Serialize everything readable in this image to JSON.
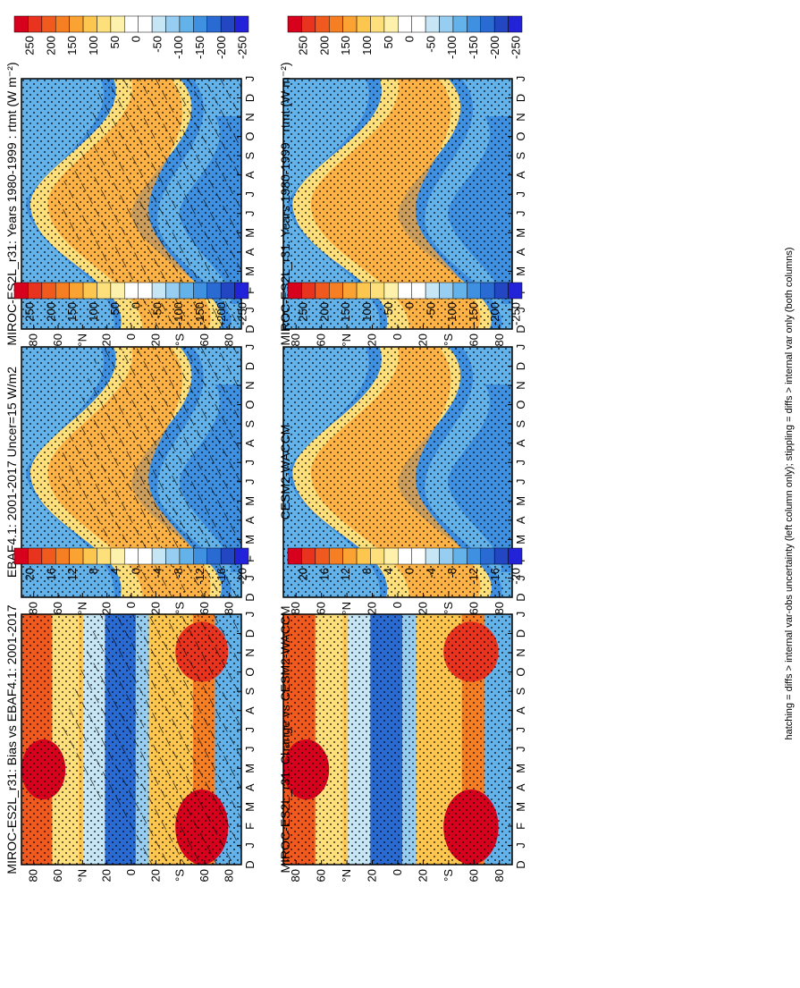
{
  "chart_data": [
    {
      "id": "a",
      "type": "heatmap",
      "title": "MIROC-ES2L_r31: Years 1980-1999 : rtmt (W m⁻²)",
      "x_tick_labels": [
        "D",
        "J",
        "F",
        "M",
        "A",
        "M",
        "J",
        "J",
        "A",
        "S",
        "O",
        "N",
        "D",
        "J"
      ],
      "y_tick_labels": [
        "80",
        "60",
        "°N",
        "20",
        "0",
        "20",
        "°S",
        "60",
        "80"
      ],
      "colorbar_labels": [
        "250",
        "200",
        "150",
        "100",
        "50",
        "0",
        "-50",
        "-100",
        "-150",
        "-200",
        "-250"
      ],
      "hatching": true,
      "stippling": true
    },
    {
      "id": "b",
      "type": "heatmap",
      "title": "EBAF4.1: 2001-2017 Uncer=15 W/m2",
      "x_tick_labels": [
        "D",
        "J",
        "F",
        "M",
        "A",
        "M",
        "J",
        "J",
        "A",
        "S",
        "O",
        "N",
        "D",
        "J"
      ],
      "y_tick_labels": [
        "80",
        "60",
        "°N",
        "20",
        "0",
        "20",
        "°S",
        "60",
        "80"
      ],
      "colorbar_labels": [
        "250",
        "200",
        "150",
        "100",
        "50",
        "0",
        "-50",
        "-100",
        "-150",
        "-200",
        "-250"
      ],
      "hatching": true,
      "stippling": true
    },
    {
      "id": "c",
      "type": "heatmap",
      "title": "MIROC-ES2L_r31: Bias vs EBAF4.1: 2001-2017",
      "x_tick_labels": [
        "D",
        "J",
        "F",
        "M",
        "A",
        "M",
        "J",
        "J",
        "A",
        "S",
        "O",
        "N",
        "D",
        "J"
      ],
      "y_tick_labels": [
        "80",
        "60",
        "°N",
        "20",
        "0",
        "20",
        "°S",
        "60",
        "80"
      ],
      "colorbar_labels": [
        "20",
        "16",
        "12",
        "8",
        "4",
        "0",
        "-4",
        "-8",
        "-12",
        "-16",
        "-20"
      ],
      "hatching": true,
      "stippling": true
    },
    {
      "id": "d",
      "type": "heatmap",
      "title": "MIROC-ES2L_r31: Years 1980-1999 : rtmt (W m⁻²)",
      "x_tick_labels": [
        "D",
        "J",
        "F",
        "M",
        "A",
        "M",
        "J",
        "J",
        "A",
        "S",
        "O",
        "N",
        "D",
        "J"
      ],
      "y_tick_labels": [
        "80",
        "60",
        "°N",
        "20",
        "0",
        "20",
        "°S",
        "60",
        "80"
      ],
      "colorbar_labels": [
        "250",
        "200",
        "150",
        "100",
        "50",
        "0",
        "-50",
        "-100",
        "-150",
        "-200",
        "-250"
      ],
      "hatching": false,
      "stippling": true
    },
    {
      "id": "e",
      "type": "heatmap",
      "title": "CESM2-WACCM",
      "x_tick_labels": [
        "D",
        "J",
        "F",
        "M",
        "A",
        "M",
        "J",
        "J",
        "A",
        "S",
        "O",
        "N",
        "D",
        "J"
      ],
      "y_tick_labels": [
        "80",
        "60",
        "°N",
        "20",
        "0",
        "20",
        "°S",
        "60",
        "80"
      ],
      "colorbar_labels": [
        "250",
        "200",
        "150",
        "100",
        "50",
        "0",
        "-50",
        "-100",
        "-150",
        "-200",
        "-250"
      ],
      "hatching": false,
      "stippling": true
    },
    {
      "id": "f",
      "type": "heatmap",
      "title": "MIROC-ES2L_r31: Change vs CESM2-WACCM",
      "x_tick_labels": [
        "D",
        "J",
        "F",
        "M",
        "A",
        "M",
        "J",
        "J",
        "A",
        "S",
        "O",
        "N",
        "D",
        "J"
      ],
      "y_tick_labels": [
        "80",
        "60",
        "°N",
        "20",
        "0",
        "20",
        "°S",
        "60",
        "80"
      ],
      "colorbar_labels": [
        "20",
        "16",
        "12",
        "8",
        "4",
        "0",
        "-4",
        "-8",
        "-12",
        "-16",
        "-20"
      ],
      "hatching": false,
      "stippling": true
    }
  ],
  "footer": "hatching = diffs > internal var-obs uncertainty (left column only); stippling = diffs > internal var only (both columns)",
  "colors": {
    "scale": [
      "#d7001d",
      "#e8331e",
      "#f05a1e",
      "#f77f23",
      "#fba332",
      "#fdc64e",
      "#fde07c",
      "#fef1ab",
      "#ffffff",
      "#ffffff",
      "#c6e6f6",
      "#96cdf0",
      "#63b2ea",
      "#3f90e0",
      "#2a6bd3",
      "#2346c2",
      "#2222d8"
    ]
  }
}
